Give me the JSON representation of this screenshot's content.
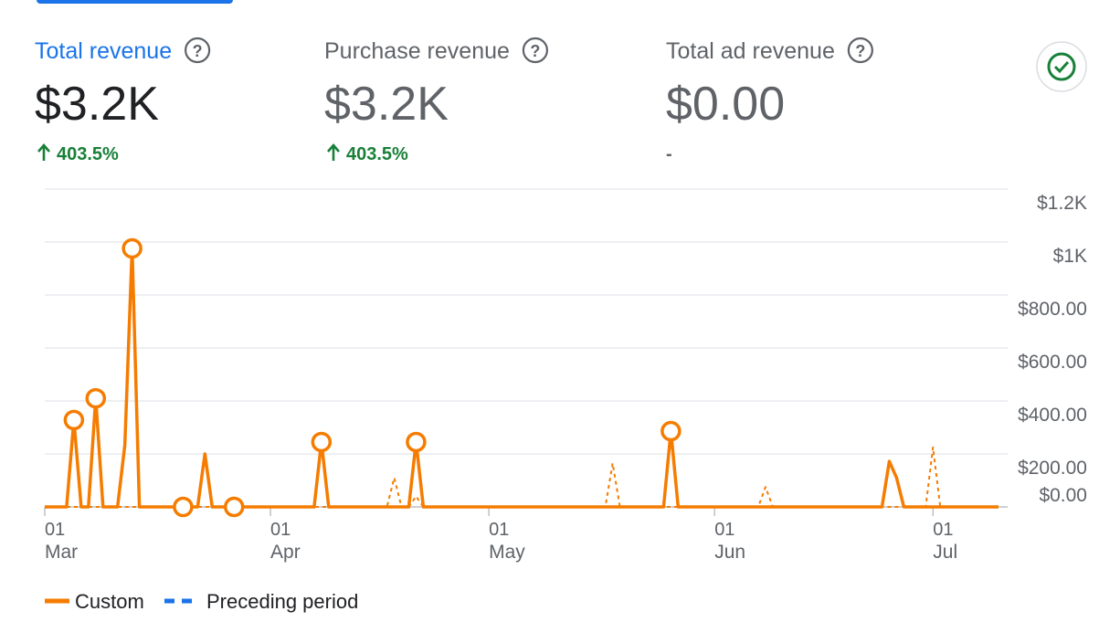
{
  "metrics": [
    {
      "title": "Total revenue",
      "value": "$3.2K",
      "change": "403.5%",
      "color": "#1a73e8",
      "value_color": "#202124"
    },
    {
      "title": "Purchase revenue",
      "value": "$3.2K",
      "change": "403.5%",
      "color": "#5f6368",
      "value_color": "#5f6368"
    },
    {
      "title": "Total ad revenue",
      "value": "$0.00",
      "change": "-",
      "color": "#5f6368",
      "value_color": "#5f6368"
    }
  ],
  "chart_data": {
    "type": "line",
    "xlim": [
      0,
      131
    ],
    "xticks": [
      {
        "value": 0,
        "label": "01",
        "month": "Mar"
      },
      {
        "value": 31,
        "label": "01",
        "month": "Apr"
      },
      {
        "value": 61,
        "label": "01",
        "month": "May"
      },
      {
        "value": 92,
        "label": "01",
        "month": "Jun"
      },
      {
        "value": 122,
        "label": "01",
        "month": "Jul"
      }
    ],
    "ylim": [
      0,
      1200
    ],
    "yticks": [
      {
        "value": 0,
        "label": "$0.00"
      },
      {
        "value": 200,
        "label": "$200.00"
      },
      {
        "value": 400,
        "label": "$400.00"
      },
      {
        "value": 600,
        "label": "$600.00"
      },
      {
        "value": 800,
        "label": "$800.00"
      },
      {
        "value": 1000,
        "label": "$1K"
      },
      {
        "value": 1200,
        "label": "$1.2K"
      }
    ],
    "grid": true,
    "series": [
      {
        "name": "Custom",
        "color": "#f57c00",
        "style": "solid",
        "x": [
          0,
          3,
          4,
          5,
          6,
          7,
          8,
          10,
          11,
          12,
          13,
          19,
          21,
          22,
          23,
          26,
          37,
          38,
          39,
          50,
          51,
          52,
          85,
          86,
          87,
          115,
          116,
          117,
          118,
          131
        ],
        "values": [
          0,
          0,
          328,
          0,
          0,
          410,
          0,
          0,
          234,
          976,
          0,
          0,
          0,
          200,
          0,
          0,
          0,
          245,
          0,
          0,
          245,
          0,
          0,
          286,
          0,
          0,
          172,
          110,
          0,
          0
        ],
        "marker_x": [
          4,
          7,
          12,
          19,
          26,
          38,
          51,
          86
        ]
      },
      {
        "name": "Preceding period",
        "color": "#f57c00",
        "legend_color": "#1a73e8",
        "style": "dashed",
        "x": [
          0,
          47,
          48,
          49,
          50,
          51,
          52,
          77,
          78,
          79,
          98,
          99,
          100,
          121,
          122,
          123,
          131
        ],
        "values": [
          0,
          0,
          110,
          0,
          0,
          40,
          0,
          0,
          165,
          0,
          0,
          75,
          0,
          0,
          225,
          0,
          0
        ]
      }
    ]
  }
}
